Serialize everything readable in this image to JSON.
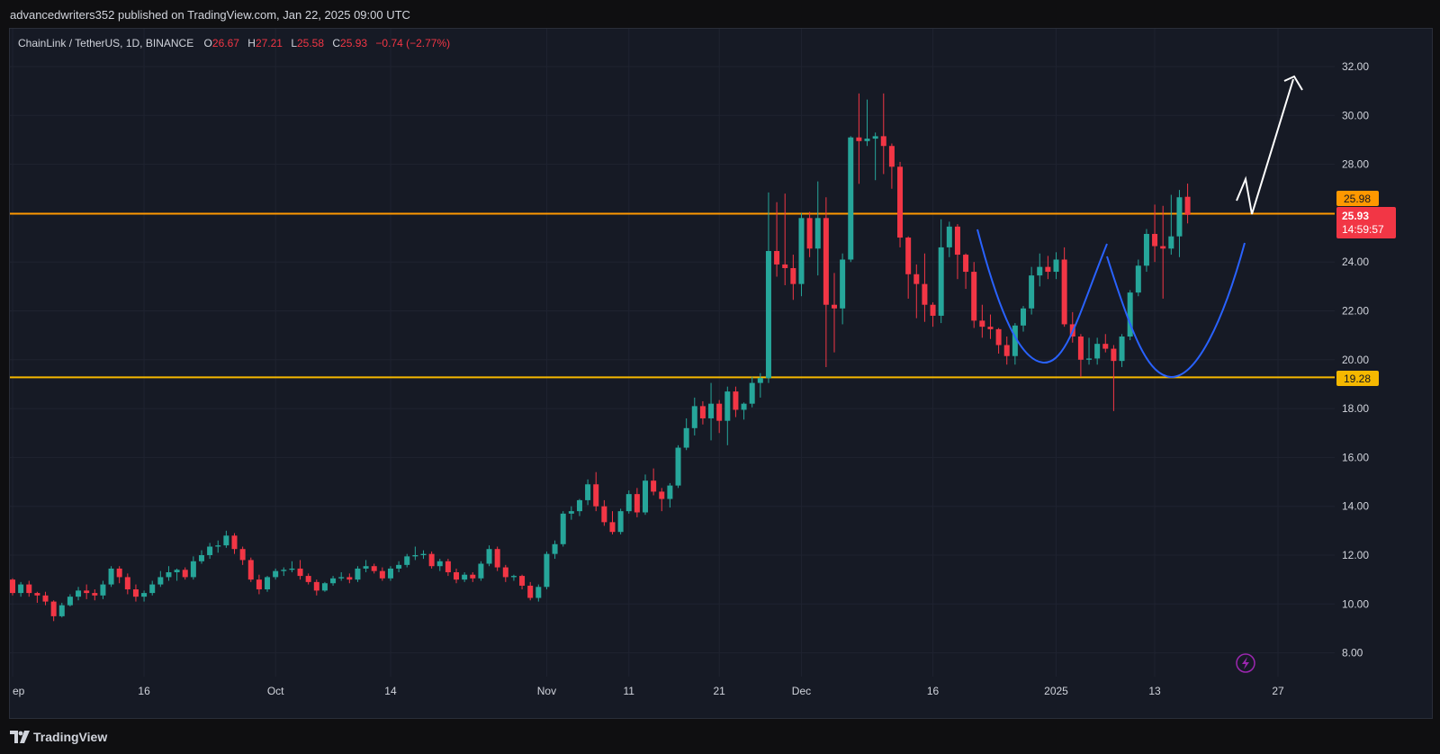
{
  "header": {
    "published_line": "advancedwriters352 published on TradingView.com, Jan 22, 2025 09:00 UTC"
  },
  "legend": {
    "symbol": "ChainLink / TetherUS, 1D, BINANCE",
    "o_label": "O",
    "o_value": "26.67",
    "h_label": "H",
    "h_value": "27.21",
    "l_label": "L",
    "l_value": "25.58",
    "c_label": "C",
    "c_value": "25.93",
    "change": "−0.74 (−2.77%)"
  },
  "price_tags": {
    "resistance": "25.98",
    "last_price": "25.93",
    "countdown": "14:59:57",
    "support": "19.28"
  },
  "footer": {
    "brand": "TradingView"
  },
  "colors": {
    "up": "#26a69a",
    "down": "#f23645",
    "resistance_line": "#ff9800",
    "support_line": "#f5b800",
    "cup_curve": "#2962ff",
    "arrow": "#ffffff"
  },
  "chart_data": {
    "type": "candlestick",
    "title": "",
    "y_axis": {
      "side": "right",
      "ylim": [
        7,
        33
      ],
      "ticks": [
        "8.00",
        "10.00",
        "12.00",
        "14.00",
        "16.00",
        "18.00",
        "20.00",
        "22.00",
        "24.00",
        "26.00",
        "28.00",
        "30.00",
        "32.00"
      ]
    },
    "x_axis": {
      "ticks": [
        "ep",
        "16",
        "Oct",
        "14",
        "Nov",
        "11",
        "21",
        "Dec",
        "16",
        "2025",
        "13",
        "27"
      ]
    },
    "levels": [
      {
        "name": "resistance",
        "value": 25.98
      },
      {
        "name": "support",
        "value": 19.28
      }
    ],
    "candles": [
      [
        11.0,
        11.05,
        10.35,
        10.45
      ],
      [
        10.45,
        10.9,
        10.3,
        10.8
      ],
      [
        10.8,
        10.95,
        10.3,
        10.45
      ],
      [
        10.45,
        10.5,
        10.05,
        10.35
      ],
      [
        10.35,
        10.5,
        9.95,
        10.1
      ],
      [
        10.1,
        10.15,
        9.3,
        9.5
      ],
      [
        9.5,
        10.05,
        9.45,
        9.95
      ],
      [
        9.95,
        10.4,
        9.9,
        10.3
      ],
      [
        10.3,
        10.7,
        10.15,
        10.55
      ],
      [
        10.55,
        10.8,
        10.2,
        10.45
      ],
      [
        10.45,
        10.6,
        10.15,
        10.35
      ],
      [
        10.35,
        10.95,
        10.2,
        10.8
      ],
      [
        10.8,
        11.55,
        10.7,
        11.45
      ],
      [
        11.45,
        11.55,
        10.85,
        11.1
      ],
      [
        11.1,
        11.25,
        10.4,
        10.6
      ],
      [
        10.6,
        10.8,
        10.1,
        10.3
      ],
      [
        10.3,
        10.55,
        10.1,
        10.45
      ],
      [
        10.45,
        10.95,
        10.35,
        10.8
      ],
      [
        10.8,
        11.35,
        10.7,
        11.1
      ],
      [
        11.1,
        11.55,
        10.95,
        11.3
      ],
      [
        11.3,
        11.45,
        10.95,
        11.4
      ],
      [
        11.4,
        11.5,
        11.0,
        11.1
      ],
      [
        11.1,
        11.95,
        11.0,
        11.75
      ],
      [
        11.75,
        12.2,
        11.65,
        12.0
      ],
      [
        12.0,
        12.5,
        11.85,
        12.35
      ],
      [
        12.35,
        12.6,
        12.1,
        12.4
      ],
      [
        12.4,
        13.0,
        12.3,
        12.8
      ],
      [
        12.8,
        12.9,
        12.05,
        12.25
      ],
      [
        12.25,
        12.35,
        11.6,
        11.8
      ],
      [
        11.8,
        11.9,
        10.9,
        11.0
      ],
      [
        11.0,
        11.2,
        10.4,
        10.6
      ],
      [
        10.6,
        11.15,
        10.5,
        11.1
      ],
      [
        11.1,
        11.45,
        11.0,
        11.35
      ],
      [
        11.35,
        11.5,
        11.15,
        11.4
      ],
      [
        11.4,
        11.75,
        11.3,
        11.45
      ],
      [
        11.45,
        11.8,
        11.0,
        11.15
      ],
      [
        11.15,
        11.25,
        10.8,
        10.9
      ],
      [
        10.9,
        11.0,
        10.35,
        10.55
      ],
      [
        10.55,
        10.9,
        10.5,
        10.85
      ],
      [
        10.85,
        11.15,
        10.75,
        11.05
      ],
      [
        11.05,
        11.3,
        10.95,
        11.1
      ],
      [
        11.1,
        11.25,
        10.85,
        11.0
      ],
      [
        11.0,
        11.55,
        10.9,
        11.45
      ],
      [
        11.45,
        11.8,
        11.3,
        11.55
      ],
      [
        11.55,
        11.65,
        11.25,
        11.35
      ],
      [
        11.35,
        11.5,
        10.95,
        11.05
      ],
      [
        11.05,
        11.55,
        10.95,
        11.45
      ],
      [
        11.45,
        11.75,
        11.3,
        11.6
      ],
      [
        11.6,
        12.05,
        11.5,
        11.95
      ],
      [
        11.95,
        12.35,
        11.8,
        12.0
      ],
      [
        12.0,
        12.2,
        11.85,
        12.05
      ],
      [
        12.05,
        12.15,
        11.45,
        11.55
      ],
      [
        11.55,
        11.85,
        11.35,
        11.75
      ],
      [
        11.75,
        11.85,
        11.15,
        11.3
      ],
      [
        11.3,
        11.45,
        10.85,
        11.0
      ],
      [
        11.0,
        11.3,
        10.9,
        11.2
      ],
      [
        11.2,
        11.3,
        10.9,
        11.05
      ],
      [
        11.05,
        11.75,
        10.95,
        11.65
      ],
      [
        11.65,
        12.4,
        11.55,
        12.25
      ],
      [
        12.25,
        12.35,
        11.35,
        11.5
      ],
      [
        11.5,
        11.6,
        10.9,
        11.1
      ],
      [
        11.1,
        11.2,
        10.95,
        11.15
      ],
      [
        11.15,
        11.2,
        10.6,
        10.75
      ],
      [
        10.75,
        10.9,
        10.15,
        10.25
      ],
      [
        10.25,
        10.8,
        10.1,
        10.7
      ],
      [
        10.7,
        12.15,
        10.6,
        12.05
      ],
      [
        12.05,
        12.6,
        11.85,
        12.45
      ],
      [
        12.45,
        13.8,
        12.35,
        13.7
      ],
      [
        13.7,
        14.0,
        13.45,
        13.8
      ],
      [
        13.8,
        14.3,
        13.6,
        14.25
      ],
      [
        14.25,
        15.1,
        14.05,
        14.9
      ],
      [
        14.9,
        15.4,
        13.8,
        14.0
      ],
      [
        14.0,
        14.25,
        13.2,
        13.35
      ],
      [
        13.35,
        13.8,
        12.85,
        12.95
      ],
      [
        12.95,
        13.9,
        12.85,
        13.8
      ],
      [
        13.8,
        14.65,
        13.7,
        14.5
      ],
      [
        14.5,
        14.75,
        13.55,
        13.75
      ],
      [
        13.75,
        15.3,
        13.65,
        15.05
      ],
      [
        15.05,
        15.55,
        14.45,
        14.6
      ],
      [
        14.6,
        14.75,
        13.8,
        14.3
      ],
      [
        14.3,
        14.95,
        13.95,
        14.85
      ],
      [
        14.85,
        16.5,
        14.75,
        16.4
      ],
      [
        16.4,
        17.6,
        16.3,
        17.2
      ],
      [
        17.2,
        18.45,
        16.9,
        18.1
      ],
      [
        18.1,
        18.3,
        17.35,
        17.6
      ],
      [
        17.6,
        19.05,
        16.7,
        18.2
      ],
      [
        18.2,
        18.35,
        17.0,
        17.5
      ],
      [
        17.5,
        18.9,
        16.5,
        18.7
      ],
      [
        18.7,
        18.9,
        17.65,
        17.95
      ],
      [
        17.95,
        18.25,
        17.55,
        18.2
      ],
      [
        18.2,
        19.3,
        18.05,
        19.05
      ],
      [
        19.05,
        19.45,
        18.45,
        19.25
      ],
      [
        19.25,
        26.85,
        19.05,
        24.45
      ],
      [
        24.45,
        26.45,
        23.4,
        23.9
      ],
      [
        23.9,
        26.8,
        23.05,
        23.75
      ],
      [
        23.75,
        24.3,
        22.45,
        23.1
      ],
      [
        23.1,
        26.0,
        22.6,
        25.8
      ],
      [
        25.8,
        26.05,
        24.2,
        24.55
      ],
      [
        24.55,
        27.3,
        23.45,
        25.8
      ],
      [
        25.8,
        26.65,
        19.7,
        22.25
      ],
      [
        22.25,
        23.55,
        20.3,
        22.1
      ],
      [
        22.1,
        24.35,
        21.45,
        24.1
      ],
      [
        24.1,
        29.15,
        24.0,
        29.1
      ],
      [
        29.1,
        30.9,
        27.2,
        28.95
      ],
      [
        28.95,
        30.65,
        28.75,
        29.05
      ],
      [
        29.05,
        29.3,
        27.35,
        29.15
      ],
      [
        29.15,
        30.9,
        27.6,
        28.75
      ],
      [
        28.75,
        28.85,
        27.0,
        27.9
      ],
      [
        27.9,
        28.1,
        24.6,
        25.0
      ],
      [
        25.0,
        25.05,
        22.5,
        23.5
      ],
      [
        23.5,
        23.9,
        21.7,
        23.1
      ],
      [
        23.1,
        24.35,
        21.55,
        22.25
      ],
      [
        22.25,
        22.35,
        21.35,
        21.8
      ],
      [
        21.8,
        25.75,
        21.5,
        24.6
      ],
      [
        24.6,
        25.65,
        24.2,
        25.45
      ],
      [
        25.45,
        25.55,
        23.3,
        24.3
      ],
      [
        24.3,
        24.35,
        22.9,
        23.6
      ],
      [
        23.6,
        24.0,
        21.3,
        21.6
      ],
      [
        21.6,
        22.25,
        20.9,
        21.35
      ],
      [
        21.35,
        21.85,
        20.85,
        21.25
      ],
      [
        21.25,
        21.3,
        20.25,
        20.6
      ],
      [
        20.6,
        20.95,
        19.8,
        20.15
      ],
      [
        20.15,
        21.5,
        19.8,
        21.4
      ],
      [
        21.4,
        22.2,
        21.15,
        22.1
      ],
      [
        22.1,
        23.8,
        21.85,
        23.45
      ],
      [
        23.45,
        24.35,
        23.0,
        23.8
      ],
      [
        23.8,
        24.25,
        23.3,
        23.6
      ],
      [
        23.6,
        24.4,
        23.3,
        24.1
      ],
      [
        24.1,
        24.6,
        21.35,
        21.45
      ],
      [
        21.45,
        21.95,
        20.7,
        20.95
      ],
      [
        20.95,
        21.05,
        19.3,
        20.0
      ],
      [
        20.0,
        20.9,
        19.8,
        20.05
      ],
      [
        20.05,
        20.9,
        19.8,
        20.65
      ],
      [
        20.65,
        21.05,
        20.3,
        20.45
      ],
      [
        20.45,
        20.6,
        17.9,
        19.95
      ],
      [
        19.95,
        21.05,
        19.7,
        20.95
      ],
      [
        20.95,
        22.85,
        20.8,
        22.75
      ],
      [
        22.75,
        24.1,
        22.6,
        23.85
      ],
      [
        23.85,
        25.35,
        23.6,
        25.15
      ],
      [
        25.15,
        26.35,
        24.0,
        24.65
      ],
      [
        24.65,
        26.3,
        22.5,
        24.55
      ],
      [
        24.55,
        26.75,
        24.3,
        25.05
      ],
      [
        25.05,
        26.95,
        24.2,
        26.65
      ],
      [
        26.67,
        27.21,
        25.58,
        25.93
      ]
    ]
  }
}
